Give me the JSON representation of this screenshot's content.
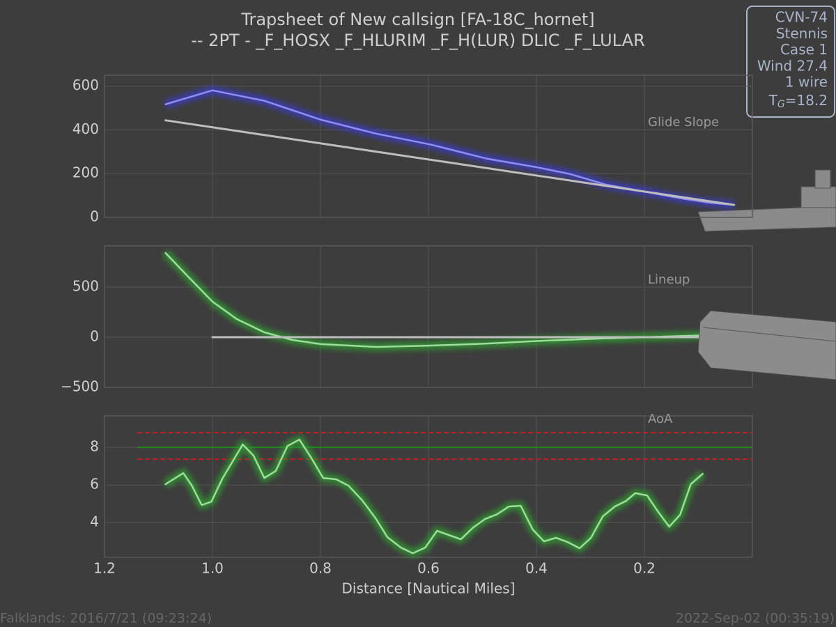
{
  "title": [
    "Trapsheet of New callsign [FA-18C_hornet]",
    "-- 2PT - _F_HOSX _F_HLURIM  _F_H(LUR) DLIC _F_LULAR"
  ],
  "info_box": {
    "lines": [
      "CVN-74",
      "Stennis",
      "Case 1",
      "Wind 27.4",
      "1 wire"
    ],
    "tg": {
      "base": "T",
      "sub": "G",
      "rest": "=18.2"
    }
  },
  "footer": {
    "left": "Falklands: 2016/7/21 (09:23:24)",
    "right": "2022-Sep-02 (00:35:19)"
  },
  "chart_data": [
    {
      "type": "line",
      "label": "Glide Slope",
      "xlim": [
        1.2,
        0
      ],
      "ylim": [
        0,
        650
      ],
      "yticks": [
        0,
        200,
        400,
        600
      ],
      "grid": true,
      "series": [
        {
          "color": "#8f8ff0",
          "glow": "#3c3cc8",
          "x": [
            1.087,
            1.0,
            0.904,
            0.8,
            0.697,
            0.594,
            0.491,
            0.401,
            0.337,
            0.272,
            0.2,
            0.13,
            0.079,
            0.034
          ],
          "values": [
            517,
            581,
            533,
            447,
            383,
            332,
            268,
            230,
            198,
            150,
            118,
            86,
            67,
            57
          ]
        },
        {
          "color": "#bdbdbd",
          "x": [
            1.087,
            0.034
          ],
          "values": [
            444,
            57
          ]
        }
      ]
    },
    {
      "type": "line",
      "label": "Lineup",
      "xlim": [
        1.2,
        0
      ],
      "ylim": [
        -500,
        910
      ],
      "yticks": [
        {
          "value": -500,
          "label": "−500"
        },
        0,
        500
      ],
      "grid": true,
      "series": [
        {
          "color": "#9edc9e",
          "glow": "#2f9a2f",
          "x": [
            1.087,
            1.045,
            1.0,
            0.955,
            0.904,
            0.852,
            0.8,
            0.697,
            0.594,
            0.491,
            0.388,
            0.285,
            0.2,
            0.034
          ],
          "values": [
            840,
            604,
            354,
            181,
            49,
            -28,
            -69,
            -97,
            -83,
            -63,
            -35,
            -14,
            0,
            28
          ]
        },
        {
          "color": "#bdbdbd",
          "x": [
            1.0,
            0.0
          ],
          "values": [
            0,
            0
          ]
        }
      ]
    },
    {
      "type": "line",
      "label": "AoA",
      "xlim": [
        1.2,
        0
      ],
      "ylim": [
        2.15,
        9.67
      ],
      "yticks": [
        4,
        6,
        8
      ],
      "grid": true,
      "xticks": [
        1.2,
        {
          "value": 1,
          "label": "1.0"
        },
        0.8,
        0.6,
        0.4,
        0.2
      ],
      "xlabel": "Distance [Nautical Miles]",
      "reference_lines": [
        {
          "value": 8.78,
          "color": "#c02020",
          "style": "dashed"
        },
        {
          "value": 8.0,
          "color": "#1f8a1f",
          "style": "solid"
        },
        {
          "value": 7.37,
          "color": "#c02020",
          "style": "dashed"
        }
      ],
      "series": [
        {
          "color": "#9edc9e",
          "glow": "#2f9a2f",
          "x": [
            1.087,
            1.054,
            1.038,
            1.02,
            1.002,
            0.981,
            0.944,
            0.924,
            0.904,
            0.883,
            0.861,
            0.839,
            0.817,
            0.795,
            0.771,
            0.748,
            0.723,
            0.697,
            0.676,
            0.651,
            0.629,
            0.606,
            0.584,
            0.562,
            0.54,
            0.517,
            0.495,
            0.473,
            0.451,
            0.429,
            0.407,
            0.386,
            0.364,
            0.342,
            0.32,
            0.299,
            0.277,
            0.255,
            0.234,
            0.217,
            0.195,
            0.176,
            0.154,
            0.134,
            0.114,
            0.092
          ],
          "values": [
            6.04,
            6.63,
            5.96,
            4.93,
            5.11,
            6.37,
            8.15,
            7.56,
            6.37,
            6.74,
            8.07,
            8.41,
            7.44,
            6.37,
            6.3,
            5.96,
            5.19,
            4.19,
            3.22,
            2.67,
            2.37,
            2.67,
            3.56,
            3.33,
            3.11,
            3.74,
            4.19,
            4.44,
            4.85,
            4.89,
            3.63,
            3.0,
            3.19,
            2.96,
            2.63,
            3.19,
            4.33,
            4.85,
            5.15,
            5.56,
            5.44,
            4.63,
            3.78,
            4.41,
            6.04,
            6.59
          ]
        }
      ]
    }
  ]
}
